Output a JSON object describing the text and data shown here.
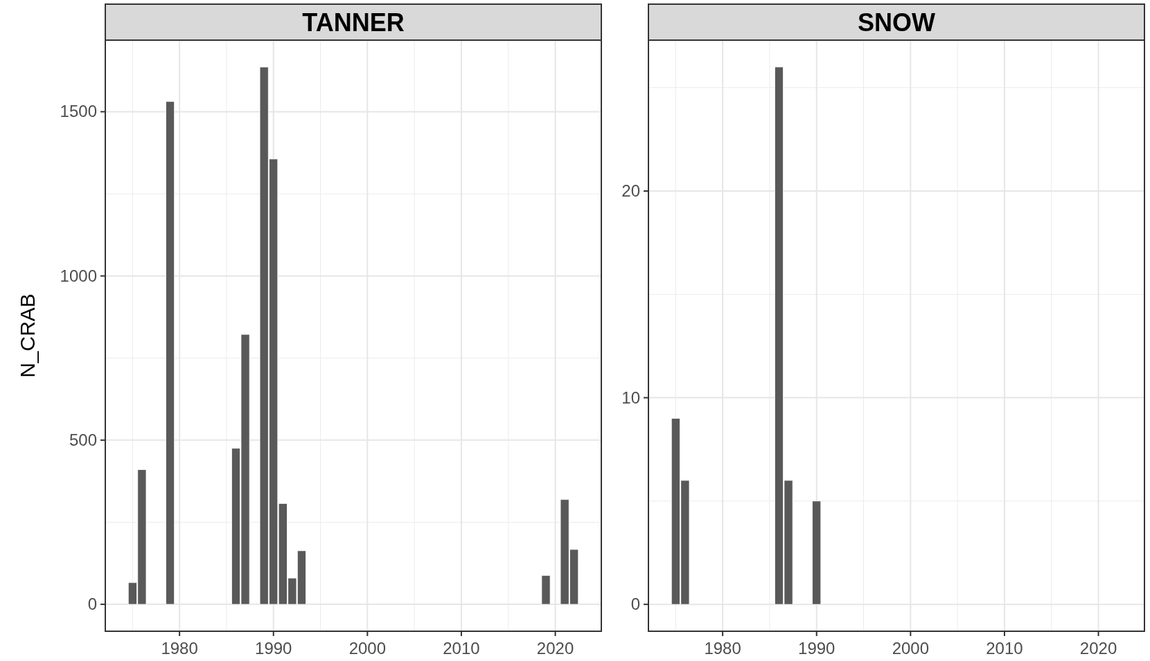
{
  "chart_data": [
    {
      "type": "bar",
      "title": "TANNER",
      "ylabel": "N_CRAB",
      "x": [
        1975,
        1976,
        1979,
        1986,
        1987,
        1989,
        1990,
        1991,
        1992,
        1993,
        2019,
        2021,
        2022
      ],
      "values": [
        66,
        410,
        1531,
        475,
        822,
        1636,
        1356,
        307,
        80,
        163,
        88,
        319,
        167
      ],
      "color": "#595959",
      "xlim": [
        1972.1,
        2024.9
      ],
      "xticks": [
        1980,
        1990,
        2000,
        2010,
        2020
      ],
      "ylim": [
        -82,
        1718
      ],
      "yticks": [
        0,
        500,
        1000,
        1500
      ],
      "grid": true
    },
    {
      "type": "bar",
      "title": "SNOW",
      "x": [
        1975,
        1976,
        1986,
        1987,
        1990
      ],
      "values": [
        9,
        6,
        26,
        6,
        5
      ],
      "color": "#595959",
      "xlim": [
        1972.1,
        2024.9
      ],
      "xticks": [
        1980,
        1990,
        2000,
        2010,
        2020
      ],
      "ylim": [
        -1.3,
        27.3
      ],
      "yticks": [
        0,
        10,
        20
      ],
      "grid": true
    }
  ]
}
